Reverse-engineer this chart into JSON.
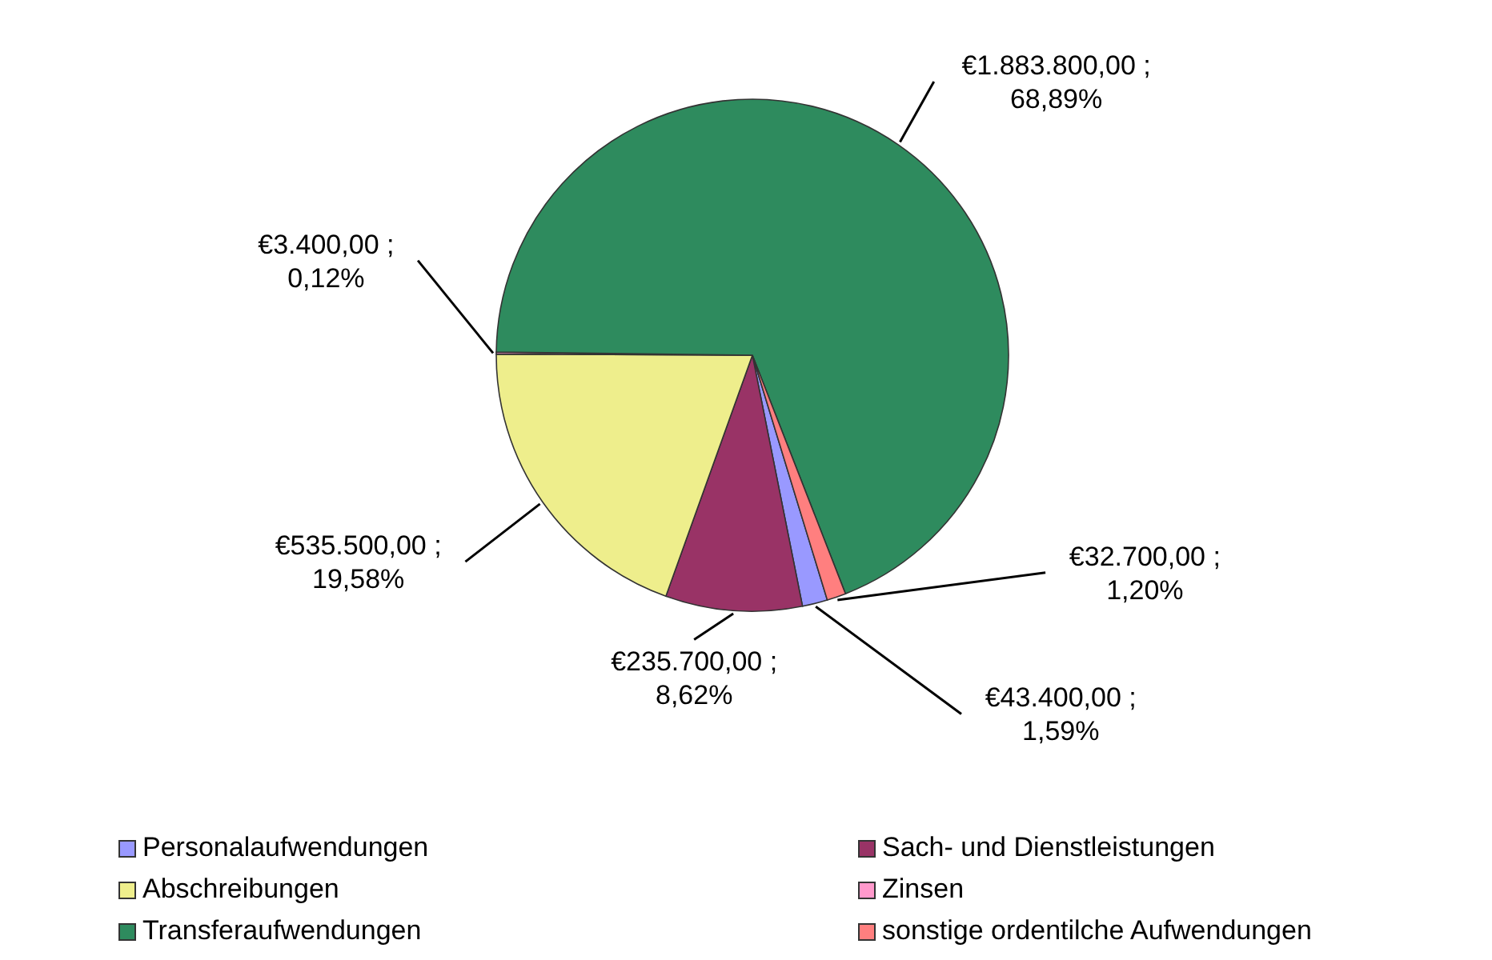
{
  "chart_data": {
    "type": "pie",
    "categories": [
      "Personalaufwendungen",
      "Sach- und Dienstleistungen",
      "Abschreibungen",
      "Zinsen",
      "Transferaufwendungen",
      "sonstige ordentilche Aufwendungen"
    ],
    "values": [
      43400,
      235700,
      535500,
      3400,
      1883800,
      32700
    ],
    "colors": [
      "#9999ff",
      "#993366",
      "#eeee8c",
      "#ff99cc",
      "#2e8b5e",
      "#ff7f7f"
    ],
    "value_labels": [
      "€43.400,00 ; 1,59%",
      "€235.700,00 ; 8,62%",
      "€535.500,00 ; 19,58%",
      "€3.400,00 ; 0,12%",
      "€1.883.800,00 ; 68,89%",
      "€32.700,00 ; 1,20%"
    ],
    "legend": "bottom"
  }
}
